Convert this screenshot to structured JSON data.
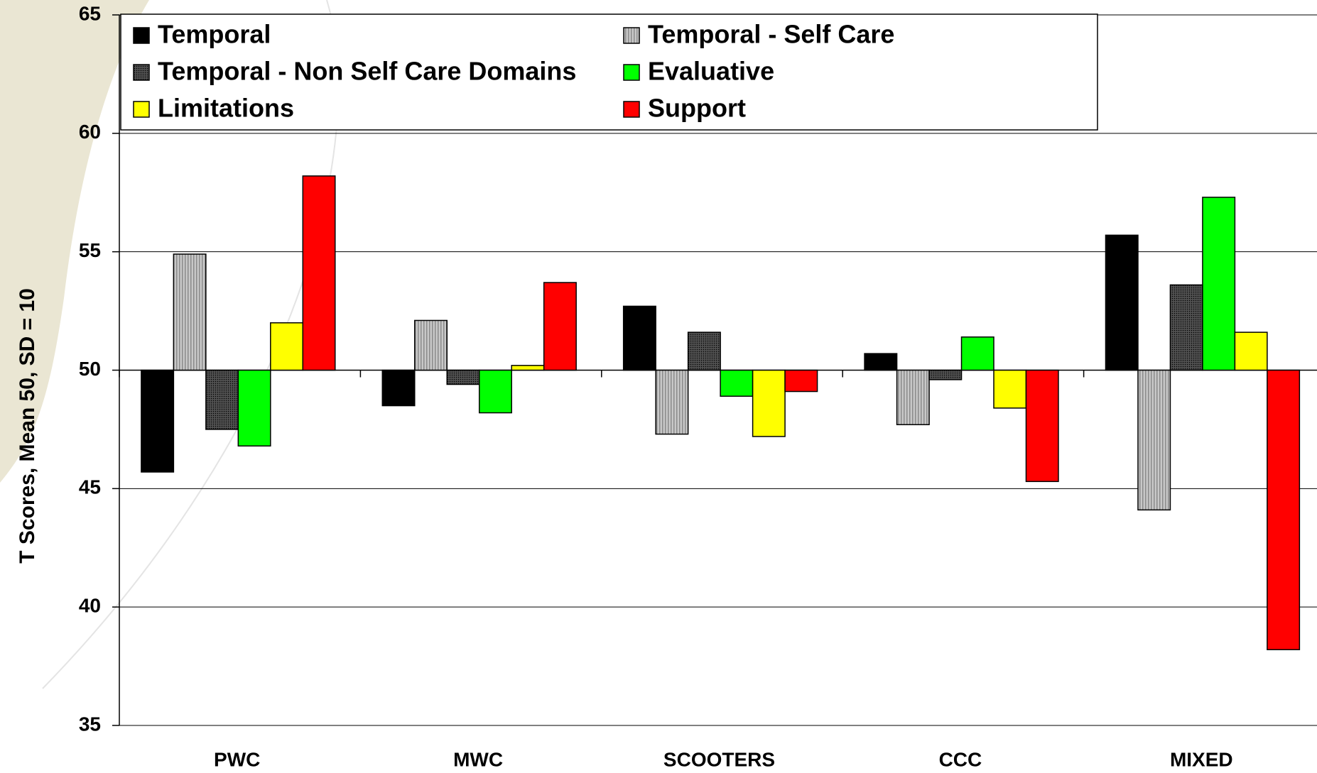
{
  "chart_data": {
    "type": "bar",
    "y_label": "T Scores, Mean 50, SD = 10",
    "categories": [
      "PWC",
      "MWC",
      "SCOOTERS",
      "CCC",
      "MIXED"
    ],
    "baseline": 50,
    "series": [
      {
        "name": "Temporal",
        "color": "#000000",
        "values": [
          45.7,
          48.5,
          52.7,
          50.7,
          55.7
        ]
      },
      {
        "name": "Temporal - Self Care",
        "color": "#c0c0c0",
        "pattern": "stripes",
        "values": [
          54.9,
          52.1,
          47.3,
          47.7,
          44.1
        ]
      },
      {
        "name": "Temporal - Non Self Care Domains",
        "color": "#333333",
        "pattern": "dots",
        "values": [
          47.5,
          49.4,
          51.6,
          49.6,
          53.6
        ]
      },
      {
        "name": "Evaluative",
        "color": "#00ff00",
        "values": [
          46.8,
          48.2,
          48.9,
          51.4,
          57.3
        ]
      },
      {
        "name": "Limitations",
        "color": "#ffff00",
        "values": [
          52.0,
          50.2,
          47.2,
          48.4,
          51.6
        ]
      },
      {
        "name": "Support",
        "color": "#ff0000",
        "values": [
          58.2,
          53.7,
          49.1,
          45.3,
          38.2
        ]
      }
    ],
    "ylim": [
      35,
      65
    ],
    "yticks": [
      35,
      40,
      45,
      50,
      55,
      60,
      65
    ],
    "grid": true,
    "legend": "top-left"
  }
}
